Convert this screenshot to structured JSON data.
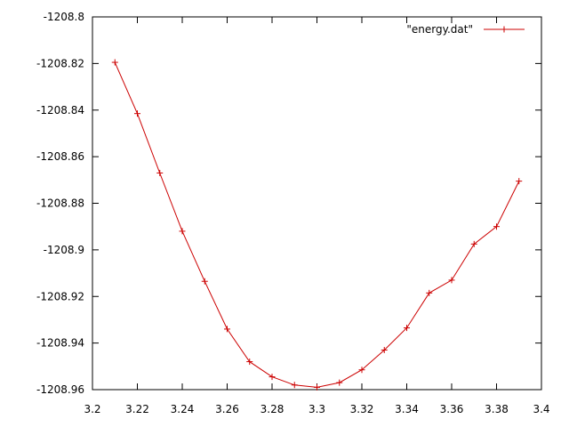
{
  "chart_data": {
    "type": "line",
    "title": "",
    "xlabel": "",
    "ylabel": "",
    "xlim": [
      3.2,
      3.4
    ],
    "ylim": [
      -1208.96,
      -1208.8
    ],
    "x_ticks": [
      3.2,
      3.22,
      3.24,
      3.26,
      3.28,
      3.3,
      3.32,
      3.34,
      3.36,
      3.38,
      3.4
    ],
    "x_tick_labels": [
      "3.2",
      "3.22",
      "3.24",
      "3.26",
      "3.28",
      "3.3",
      "3.32",
      "3.34",
      "3.36",
      "3.38",
      "3.4"
    ],
    "y_ticks": [
      -1208.8,
      -1208.82,
      -1208.84,
      -1208.86,
      -1208.88,
      -1208.9,
      -1208.92,
      -1208.94,
      -1208.96
    ],
    "y_tick_labels": [
      "-1208.8",
      "-1208.82",
      "-1208.84",
      "-1208.86",
      "-1208.88",
      "-1208.9",
      "-1208.92",
      "-1208.94",
      "-1208.96"
    ],
    "grid": false,
    "legend_position": "top-right",
    "series": [
      {
        "name": "\"energy.dat\"",
        "color": "#cc0000",
        "marker": "plus",
        "x": [
          3.21,
          3.22,
          3.23,
          3.24,
          3.25,
          3.26,
          3.27,
          3.28,
          3.29,
          3.3,
          3.31,
          3.32,
          3.33,
          3.34,
          3.35,
          3.36,
          3.37,
          3.38,
          3.39
        ],
        "y": [
          -1208.8195,
          -1208.8415,
          -1208.867,
          -1208.892,
          -1208.9135,
          -1208.934,
          -1208.948,
          -1208.9545,
          -1208.958,
          -1208.959,
          -1208.957,
          -1208.9515,
          -1208.943,
          -1208.9335,
          -1208.9185,
          -1208.913,
          -1208.8975,
          -1208.89,
          -1208.8705
        ]
      }
    ]
  }
}
